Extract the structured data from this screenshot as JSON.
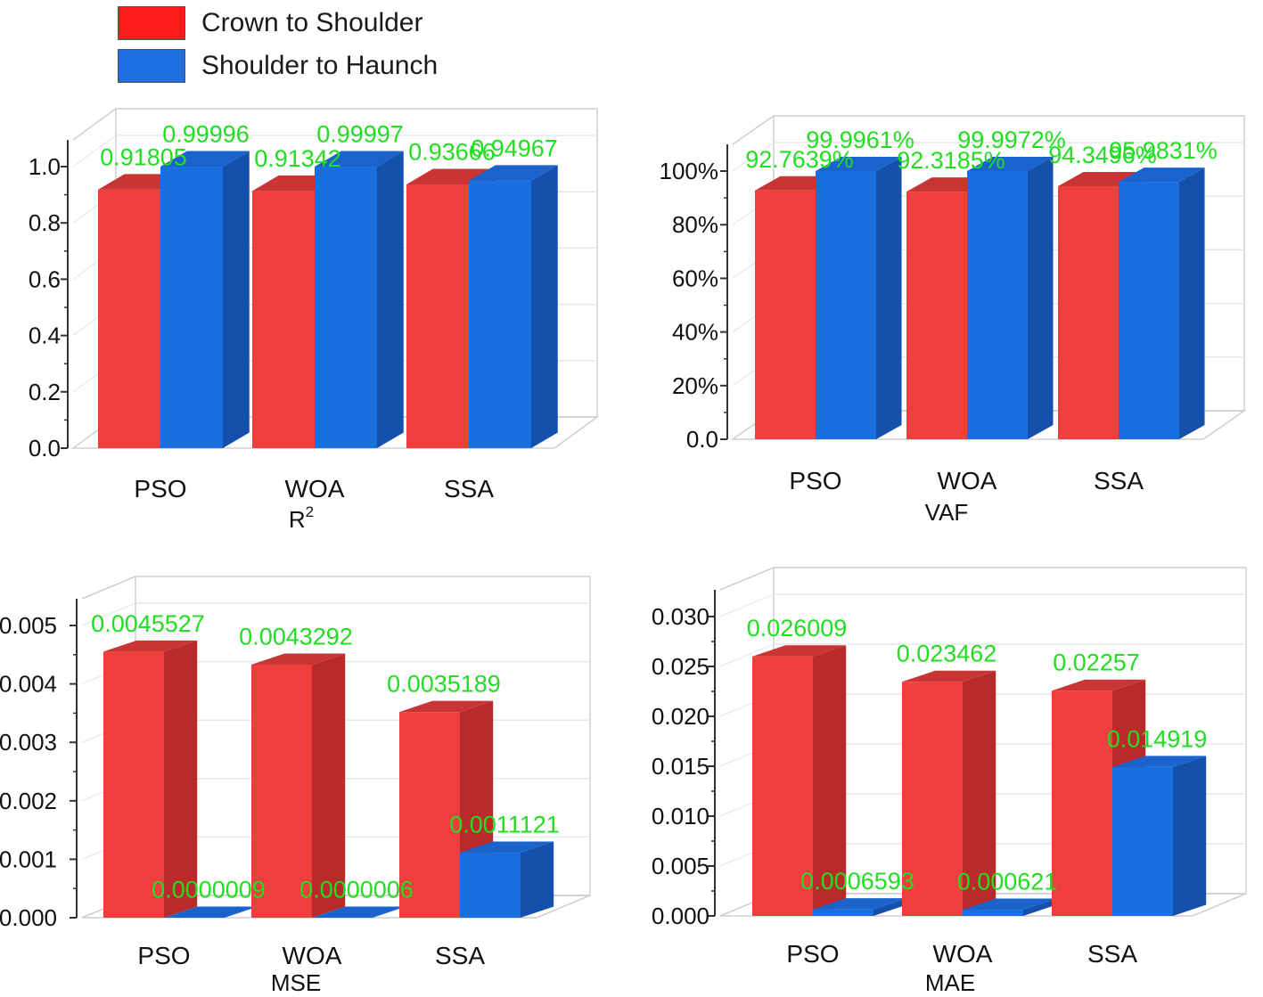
{
  "legend": [
    {
      "label": "Crown to Shoulder",
      "color": "#ff1a1a"
    },
    {
      "label": "Shoulder to Haunch",
      "color": "#1f6fe0"
    }
  ],
  "colors": {
    "red_front": "#ee3e3e",
    "red_side": "#bb2a2a",
    "red_top": "#c93434",
    "blue_front": "#1a6fe0",
    "blue_side": "#1451ad",
    "blue_top": "#1a62cc",
    "value_label": "#22dd22",
    "axis_text": "#111111",
    "grid": "#e6e6e6",
    "frame": "#cfcfcf"
  },
  "chart_data": [
    {
      "type": "bar",
      "title": "R",
      "title_sup": "2",
      "categories": [
        "PSO",
        "WOA",
        "SSA"
      ],
      "series": [
        {
          "name": "Crown to Shoulder",
          "values": [
            0.91805,
            0.91342,
            0.93666
          ],
          "labels": [
            "0.91805",
            "0.91342",
            "0.93666"
          ]
        },
        {
          "name": "Shoulder to Haunch",
          "values": [
            0.99996,
            0.99997,
            0.94967
          ],
          "labels": [
            "0.99996",
            "0.99997",
            "0.94967"
          ]
        }
      ],
      "ylim": [
        0,
        1.0
      ],
      "yticks": [
        0.0,
        0.2,
        0.4,
        0.6,
        0.8,
        1.0
      ],
      "ytick_labels": [
        "0.0",
        "0.2",
        "0.4",
        "0.6",
        "0.8",
        "1.0"
      ]
    },
    {
      "type": "bar",
      "title": "VAF",
      "categories": [
        "PSO",
        "WOA",
        "SSA"
      ],
      "series": [
        {
          "name": "Crown to Shoulder",
          "values": [
            92.7639,
            92.3185,
            94.3496
          ],
          "labels": [
            "92.7639%",
            "92.3185%",
            "94.3496%"
          ]
        },
        {
          "name": "Shoulder to Haunch",
          "values": [
            99.9961,
            99.9972,
            95.9831
          ],
          "labels": [
            "99.9961%",
            "99.9972%",
            "95.9831%"
          ]
        }
      ],
      "ylim": [
        0,
        100
      ],
      "yticks": [
        0,
        20,
        40,
        60,
        80,
        100
      ],
      "ytick_labels": [
        "0.0",
        "20%",
        "40%",
        "60%",
        "80%",
        "100%"
      ]
    },
    {
      "type": "bar",
      "title": "MSE",
      "categories": [
        "PSO",
        "WOA",
        "SSA"
      ],
      "series": [
        {
          "name": "Crown to Shoulder",
          "values": [
            0.0045527,
            0.0043292,
            0.0035189
          ],
          "labels": [
            "0.0045527",
            "0.0043292",
            "0.0035189"
          ]
        },
        {
          "name": "Shoulder to Haunch",
          "values": [
            9e-07,
            6e-07,
            0.0011121
          ],
          "labels": [
            "0.0000009",
            "0.0000006",
            "0.0011121"
          ]
        }
      ],
      "ylim": [
        0,
        0.005
      ],
      "yticks": [
        0,
        0.001,
        0.002,
        0.003,
        0.004,
        0.005
      ],
      "ytick_labels": [
        "0.000",
        "0.001",
        "0.002",
        "0.003",
        "0.004",
        "0.005"
      ]
    },
    {
      "type": "bar",
      "title": "MAE",
      "categories": [
        "PSO",
        "WOA",
        "SSA"
      ],
      "series": [
        {
          "name": "Crown to Shoulder",
          "values": [
            0.026009,
            0.023462,
            0.02257
          ],
          "labels": [
            "0.026009",
            "0.023462",
            "0.02257"
          ]
        },
        {
          "name": "Shoulder to Haunch",
          "values": [
            0.0006593,
            0.000621,
            0.014919
          ],
          "labels": [
            "0.0006593",
            "0.000621",
            "0.014919"
          ]
        }
      ],
      "ylim": [
        0,
        0.03
      ],
      "yticks": [
        0,
        0.005,
        0.01,
        0.015,
        0.02,
        0.025,
        0.03
      ],
      "ytick_labels": [
        "0.000",
        "0.005",
        "0.010",
        "0.015",
        "0.020",
        "0.025",
        "0.030"
      ]
    }
  ]
}
